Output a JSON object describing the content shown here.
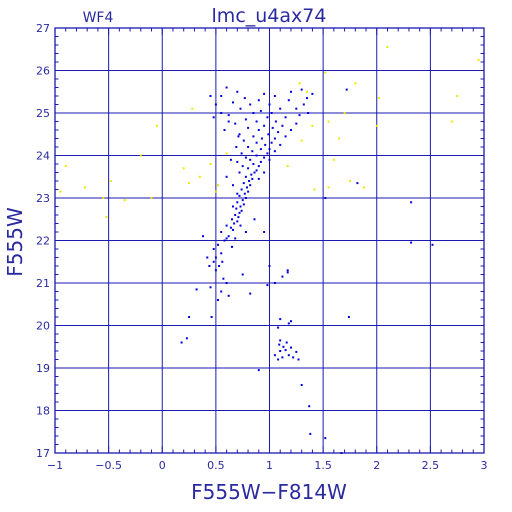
{
  "chart_data": {
    "type": "scatter",
    "title": "lmc_u4ax74",
    "chip_label": "WF4",
    "xlabel": "F555W−F814W",
    "ylabel": "F555W",
    "xlim": [
      -1,
      3
    ],
    "ylim": [
      27,
      17
    ],
    "y_inverted": true,
    "grid": true,
    "x_ticks": [
      -1,
      -0.5,
      0,
      0.5,
      1,
      1.5,
      2,
      2.5,
      3
    ],
    "x_tick_labels": [
      "−1",
      "−0.5",
      "0",
      "0.5",
      "1",
      "1.5",
      "2",
      "2.5",
      "3"
    ],
    "y_ticks": [
      17,
      18,
      19,
      20,
      21,
      22,
      23,
      24,
      25,
      26,
      27
    ],
    "y_tick_labels": [
      "17",
      "18",
      "19",
      "20",
      "21",
      "22",
      "23",
      "24",
      "25",
      "26",
      "27"
    ],
    "colors": {
      "axes": "#1a1ab0",
      "text": "#2a2aa0",
      "primary": "#0000dd",
      "secondary": "#e8e800"
    },
    "series": [
      {
        "color": "#0000dd",
        "points": [
          [
            1.38,
            17.45
          ],
          [
            1.52,
            17.35
          ],
          [
            1.67,
            17.0
          ],
          [
            1.37,
            18.1
          ],
          [
            1.3,
            18.6
          ],
          [
            0.9,
            18.95
          ],
          [
            1.08,
            19.2
          ],
          [
            1.12,
            19.25
          ],
          [
            1.18,
            19.3
          ],
          [
            1.22,
            19.25
          ],
          [
            1.1,
            19.4
          ],
          [
            1.15,
            19.42
          ],
          [
            1.25,
            19.38
          ],
          [
            1.13,
            19.5
          ],
          [
            1.2,
            19.48
          ],
          [
            1.09,
            19.55
          ],
          [
            1.16,
            19.6
          ],
          [
            1.1,
            19.65
          ],
          [
            1.05,
            19.3
          ],
          [
            1.27,
            19.2
          ],
          [
            0.18,
            19.6
          ],
          [
            0.23,
            19.7
          ],
          [
            0.25,
            20.2
          ],
          [
            1.08,
            19.95
          ],
          [
            1.18,
            20.05
          ],
          [
            1.2,
            20.1
          ],
          [
            1.1,
            20.15
          ],
          [
            1.74,
            20.2
          ],
          [
            0.46,
            20.2
          ],
          [
            0.32,
            20.85
          ],
          [
            0.45,
            20.9
          ],
          [
            0.52,
            20.6
          ],
          [
            0.55,
            20.8
          ],
          [
            0.6,
            21.0
          ],
          [
            0.57,
            21.1
          ],
          [
            0.62,
            20.7
          ],
          [
            0.82,
            20.75
          ],
          [
            0.75,
            21.2
          ],
          [
            0.98,
            20.95
          ],
          [
            1.05,
            21.0
          ],
          [
            1.12,
            21.15
          ],
          [
            1.0,
            21.4
          ],
          [
            1.17,
            21.3
          ],
          [
            1.17,
            21.25
          ],
          [
            0.44,
            21.4
          ],
          [
            0.48,
            21.5
          ],
          [
            0.42,
            21.6
          ],
          [
            0.38,
            22.1
          ],
          [
            0.95,
            22.2
          ],
          [
            2.32,
            21.95
          ],
          [
            2.52,
            21.9
          ],
          [
            2.32,
            22.9
          ],
          [
            1.82,
            23.35
          ],
          [
            1.52,
            23.0
          ],
          [
            0.5,
            21.3
          ],
          [
            0.53,
            21.4
          ],
          [
            0.56,
            21.5
          ],
          [
            0.5,
            21.6
          ],
          [
            0.55,
            21.7
          ],
          [
            0.48,
            21.8
          ],
          [
            0.52,
            21.9
          ],
          [
            0.58,
            22.0
          ],
          [
            0.6,
            22.05
          ],
          [
            0.62,
            22.1
          ],
          [
            0.55,
            22.2
          ],
          [
            0.66,
            22.25
          ],
          [
            0.64,
            22.3
          ],
          [
            0.6,
            22.35
          ],
          [
            0.67,
            22.4
          ],
          [
            0.7,
            22.45
          ],
          [
            0.65,
            22.5
          ],
          [
            0.71,
            22.55
          ],
          [
            0.68,
            22.6
          ],
          [
            0.72,
            22.65
          ],
          [
            0.74,
            22.7
          ],
          [
            0.69,
            22.75
          ],
          [
            0.73,
            22.8
          ],
          [
            0.76,
            22.85
          ],
          [
            0.7,
            22.9
          ],
          [
            0.75,
            22.95
          ],
          [
            0.78,
            23.0
          ],
          [
            0.72,
            23.05
          ],
          [
            0.77,
            23.1
          ],
          [
            0.8,
            23.15
          ],
          [
            0.74,
            23.2
          ],
          [
            0.79,
            23.25
          ],
          [
            0.82,
            23.3
          ],
          [
            0.76,
            23.35
          ],
          [
            0.81,
            23.4
          ],
          [
            0.84,
            23.45
          ],
          [
            0.78,
            23.5
          ],
          [
            0.83,
            23.55
          ],
          [
            0.86,
            23.6
          ],
          [
            0.72,
            23.6
          ],
          [
            0.88,
            23.65
          ],
          [
            0.8,
            23.7
          ],
          [
            0.75,
            23.75
          ],
          [
            0.9,
            23.75
          ],
          [
            0.85,
            23.8
          ],
          [
            0.7,
            23.85
          ],
          [
            0.92,
            23.85
          ],
          [
            0.82,
            23.9
          ],
          [
            0.78,
            23.95
          ],
          [
            0.95,
            23.95
          ],
          [
            0.88,
            24.0
          ],
          [
            0.74,
            24.05
          ],
          [
            0.98,
            24.05
          ],
          [
            0.84,
            24.1
          ],
          [
            0.92,
            24.15
          ],
          [
            1.0,
            24.15
          ],
          [
            0.8,
            24.2
          ],
          [
            0.96,
            24.25
          ],
          [
            0.88,
            24.3
          ],
          [
            1.02,
            24.3
          ],
          [
            0.76,
            24.35
          ],
          [
            0.93,
            24.4
          ],
          [
            1.05,
            24.4
          ],
          [
            0.85,
            24.45
          ],
          [
            0.99,
            24.5
          ],
          [
            0.72,
            24.5
          ],
          [
            1.08,
            24.55
          ],
          [
            0.9,
            24.6
          ],
          [
            0.8,
            24.65
          ],
          [
            1.03,
            24.65
          ],
          [
            0.95,
            24.7
          ],
          [
            1.12,
            24.7
          ],
          [
            0.68,
            24.75
          ],
          [
            0.88,
            24.8
          ],
          [
            1.06,
            24.8
          ],
          [
            0.78,
            24.85
          ],
          [
            0.98,
            24.9
          ],
          [
            1.15,
            24.9
          ],
          [
            0.62,
            24.95
          ],
          [
            0.85,
            25.0
          ],
          [
            1.02,
            25.0
          ],
          [
            0.92,
            25.05
          ],
          [
            1.1,
            25.1
          ],
          [
            0.73,
            25.1
          ],
          [
            0.82,
            25.2
          ],
          [
            1.0,
            25.2
          ],
          [
            0.66,
            25.25
          ],
          [
            0.9,
            25.3
          ],
          [
            1.18,
            25.3
          ],
          [
            0.77,
            25.35
          ],
          [
            0.55,
            25.4
          ],
          [
            1.05,
            25.4
          ],
          [
            0.95,
            25.45
          ],
          [
            0.7,
            25.5
          ],
          [
            1.2,
            25.5
          ],
          [
            0.6,
            25.6
          ],
          [
            1.3,
            25.55
          ],
          [
            1.4,
            25.45
          ],
          [
            1.72,
            25.55
          ],
          [
            1.36,
            25.0
          ],
          [
            0.48,
            24.9
          ],
          [
            0.6,
            23.5
          ],
          [
            0.66,
            23.3
          ],
          [
            0.64,
            23.9
          ],
          [
            0.69,
            24.2
          ],
          [
            0.71,
            24.45
          ],
          [
            0.9,
            23.45
          ],
          [
            0.95,
            23.6
          ],
          [
            1.0,
            23.9
          ],
          [
            1.05,
            24.1
          ],
          [
            1.1,
            24.25
          ],
          [
            1.15,
            24.45
          ],
          [
            1.2,
            24.6
          ],
          [
            1.25,
            24.75
          ],
          [
            1.28,
            24.95
          ],
          [
            0.58,
            24.6
          ],
          [
            0.62,
            24.8
          ],
          [
            0.55,
            25.0
          ],
          [
            0.5,
            25.2
          ],
          [
            0.45,
            25.4
          ],
          [
            1.32,
            25.2
          ],
          [
            1.35,
            25.35
          ],
          [
            1.25,
            25.1
          ],
          [
            0.86,
            22.5
          ],
          [
            0.78,
            22.2
          ],
          [
            0.65,
            21.85
          ],
          [
            0.68,
            22.05
          ],
          [
            0.73,
            22.35
          ],
          [
            0.66,
            22.8
          ],
          [
            0.7,
            23.1
          ]
        ]
      },
      {
        "color": "#e8e800",
        "points": [
          [
            -0.52,
            22.55
          ],
          [
            -0.72,
            23.25
          ],
          [
            -0.48,
            23.4
          ],
          [
            -0.95,
            23.15
          ],
          [
            -0.9,
            23.75
          ],
          [
            -0.35,
            22.95
          ],
          [
            -0.55,
            23.0
          ],
          [
            -0.1,
            23.0
          ],
          [
            -0.2,
            24.0
          ],
          [
            -0.05,
            24.7
          ],
          [
            0.25,
            23.35
          ],
          [
            0.2,
            23.7
          ],
          [
            0.35,
            23.5
          ],
          [
            0.5,
            23.15
          ],
          [
            0.45,
            23.8
          ],
          [
            0.52,
            23.3
          ],
          [
            0.6,
            24.05
          ],
          [
            1.17,
            23.75
          ],
          [
            1.42,
            23.2
          ],
          [
            1.55,
            23.25
          ],
          [
            1.6,
            23.9
          ],
          [
            1.75,
            23.4
          ],
          [
            1.88,
            23.25
          ],
          [
            1.65,
            24.4
          ],
          [
            1.3,
            24.35
          ],
          [
            1.4,
            24.7
          ],
          [
            1.55,
            24.8
          ],
          [
            1.7,
            25.0
          ],
          [
            1.35,
            25.5
          ],
          [
            1.28,
            25.7
          ],
          [
            1.8,
            25.7
          ],
          [
            2.02,
            25.35
          ],
          [
            2.0,
            24.7
          ],
          [
            2.7,
            24.8
          ],
          [
            2.75,
            25.4
          ],
          [
            2.95,
            26.25
          ],
          [
            2.1,
            26.55
          ],
          [
            0.28,
            25.1
          ],
          [
            1.52,
            25.95
          ]
        ]
      }
    ]
  }
}
